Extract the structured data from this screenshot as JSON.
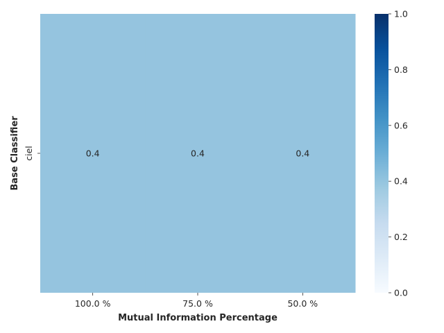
{
  "chart_data": {
    "type": "heatmap",
    "title": "",
    "xlabel": "Mutual Information Percentage",
    "ylabel": "Base Classifier",
    "x_categories": [
      "100.0 %",
      "75.0 %",
      "50.0 %"
    ],
    "y_categories": [
      "ciel"
    ],
    "values": [
      [
        0.4,
        0.4,
        0.4
      ]
    ],
    "cell_labels": [
      [
        "0.4",
        "0.4",
        "0.4"
      ]
    ],
    "colormap": "Blues",
    "vmin": 0.0,
    "vmax": 1.0,
    "colorbar_ticks": [
      "0.0",
      "0.2",
      "0.4",
      "0.6",
      "0.8",
      "1.0"
    ],
    "colorbar_tick_values": [
      0.0,
      0.2,
      0.4,
      0.6,
      0.8,
      1.0
    ],
    "cell_color": "#95c4df",
    "grid": false,
    "legend": "colorbar-right"
  }
}
